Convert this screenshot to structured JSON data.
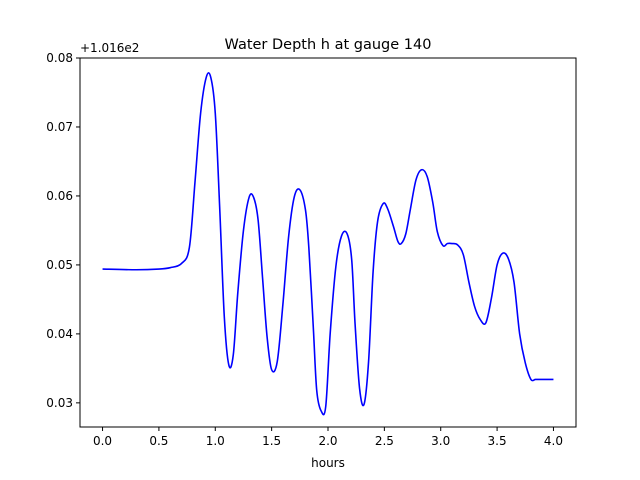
{
  "chart_data": {
    "type": "line",
    "title": "Water Depth h at gauge 140",
    "xlabel": "hours",
    "ylabel": "",
    "y_offset_label": "+1.016e2",
    "xlim": [
      -0.2,
      4.2
    ],
    "ylim": [
      0.0265,
      0.08
    ],
    "x_ticks": [
      0.0,
      0.5,
      1.0,
      1.5,
      2.0,
      2.5,
      3.0,
      3.5,
      4.0
    ],
    "x_tick_labels": [
      "0.0",
      "0.5",
      "1.0",
      "1.5",
      "2.0",
      "2.5",
      "3.0",
      "3.5",
      "4.0"
    ],
    "y_ticks": [
      0.03,
      0.04,
      0.05,
      0.06,
      0.07,
      0.08
    ],
    "y_tick_labels": [
      "0.03",
      "0.04",
      "0.05",
      "0.06",
      "0.07",
      "0.08"
    ],
    "grid": false,
    "series": [
      {
        "color": "#0000ff",
        "x": [
          0.0,
          0.3,
          0.5,
          0.6,
          0.7,
          0.77,
          0.82,
          0.87,
          0.92,
          0.96,
          1.0,
          1.04,
          1.08,
          1.12,
          1.16,
          1.2,
          1.25,
          1.3,
          1.34,
          1.38,
          1.42,
          1.46,
          1.5,
          1.55,
          1.6,
          1.65,
          1.7,
          1.75,
          1.8,
          1.83,
          1.87,
          1.9,
          1.94,
          1.98,
          2.02,
          2.07,
          2.12,
          2.17,
          2.21,
          2.24,
          2.28,
          2.32,
          2.36,
          2.4,
          2.44,
          2.49,
          2.53,
          2.58,
          2.62,
          2.65,
          2.69,
          2.73,
          2.78,
          2.83,
          2.88,
          2.93,
          2.97,
          3.02,
          3.06,
          3.1,
          3.15,
          3.2,
          3.25,
          3.3,
          3.35,
          3.4,
          3.45,
          3.5,
          3.55,
          3.6,
          3.65,
          3.7,
          3.75,
          3.8,
          3.84,
          3.88,
          3.92,
          3.96,
          4.0
        ],
        "y": [
          0.0494,
          0.0493,
          0.0494,
          0.0496,
          0.0502,
          0.0525,
          0.062,
          0.072,
          0.0772,
          0.0772,
          0.072,
          0.058,
          0.0425,
          0.0355,
          0.037,
          0.046,
          0.055,
          0.0598,
          0.0598,
          0.0565,
          0.048,
          0.0395,
          0.0348,
          0.036,
          0.0443,
          0.054,
          0.0598,
          0.0609,
          0.058,
          0.0525,
          0.0408,
          0.0318,
          0.0288,
          0.0295,
          0.0402,
          0.0498,
          0.0542,
          0.0545,
          0.0508,
          0.0415,
          0.0321,
          0.0298,
          0.036,
          0.049,
          0.0563,
          0.0589,
          0.0581,
          0.0556,
          0.0534,
          0.0531,
          0.0545,
          0.058,
          0.0623,
          0.0638,
          0.0628,
          0.059,
          0.0548,
          0.0528,
          0.0531,
          0.0531,
          0.0529,
          0.0515,
          0.0475,
          0.044,
          0.0421,
          0.0416,
          0.0452,
          0.05,
          0.0517,
          0.0509,
          0.0475,
          0.04,
          0.0358,
          0.0334,
          0.0334,
          0.0334,
          0.0334,
          0.0334,
          0.0334
        ]
      }
    ]
  }
}
